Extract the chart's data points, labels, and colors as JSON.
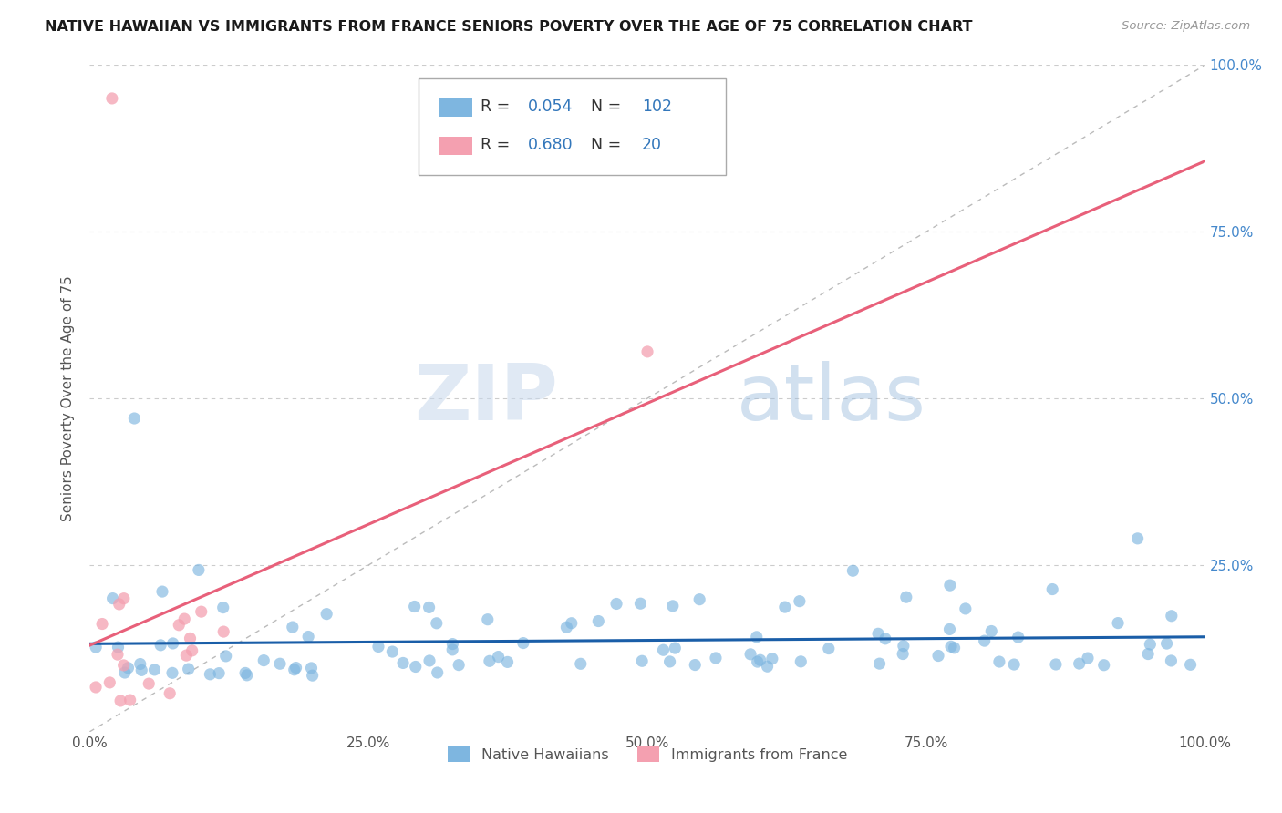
{
  "title": "NATIVE HAWAIIAN VS IMMIGRANTS FROM FRANCE SENIORS POVERTY OVER THE AGE OF 75 CORRELATION CHART",
  "source": "Source: ZipAtlas.com",
  "ylabel": "Seniors Poverty Over the Age of 75",
  "xlim": [
    0,
    1
  ],
  "ylim": [
    0,
    1
  ],
  "xticks": [
    0,
    0.25,
    0.5,
    0.75,
    1.0
  ],
  "yticks": [
    0,
    0.25,
    0.5,
    0.75,
    1.0
  ],
  "xtick_labels": [
    "0.0%",
    "25.0%",
    "50.0%",
    "75.0%",
    "100.0%"
  ],
  "ytick_labels_left": [
    "",
    "",
    "",
    "",
    ""
  ],
  "ytick_labels_right": [
    "",
    "25.0%",
    "50.0%",
    "75.0%",
    "100.0%"
  ],
  "blue_color": "#7EB6E0",
  "pink_color": "#F4A0B0",
  "blue_line_color": "#1A5EA8",
  "pink_line_color": "#E8607A",
  "blue_R": 0.054,
  "blue_N": 102,
  "pink_R": 0.68,
  "pink_N": 20,
  "legend_label_blue": "Native Hawaiians",
  "legend_label_pink": "Immigrants from France",
  "watermark_zip": "ZIP",
  "watermark_atlas": "atlas",
  "title_color": "#1a1a1a",
  "tick_color_left": "#555555",
  "tick_color_right": "#4488CC",
  "grid_color": "#CCCCCC",
  "legend_R_N_color": "#3377BB",
  "diag_color": "#BBBBBB"
}
